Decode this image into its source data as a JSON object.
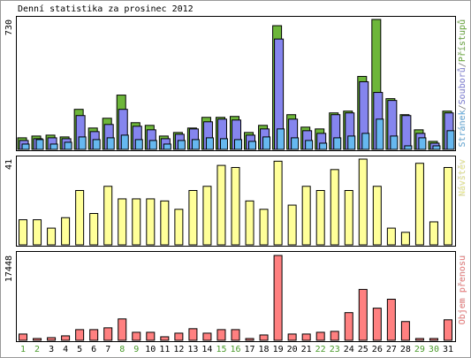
{
  "chart_data": [
    {
      "type": "bar",
      "title": "Denní statistika za prosinec 2012",
      "legend_separator": "/",
      "series": [
        {
          "name": "Stránek",
          "color": "#66b8f0",
          "values": [
            30,
            55,
            30,
            40,
            70,
            55,
            65,
            80,
            55,
            50,
            30,
            50,
            55,
            65,
            60,
            55,
            45,
            70,
            115,
            65,
            50,
            35,
            65,
            75,
            90,
            170,
            75,
            20,
            65,
            20,
            105
          ]
        },
        {
          "name": "Souborů",
          "color": "#8585ee",
          "values": [
            50,
            60,
            65,
            60,
            190,
            100,
            140,
            225,
            130,
            110,
            60,
            85,
            115,
            155,
            170,
            165,
            80,
            115,
            620,
            170,
            105,
            90,
            195,
            205,
            380,
            320,
            275,
            190,
            90,
            35,
            205
          ]
        },
        {
          "name": "Přístupů",
          "color": "#6db63a",
          "values": [
            65,
            75,
            80,
            70,
            225,
            120,
            175,
            305,
            150,
            135,
            75,
            95,
            120,
            180,
            180,
            185,
            95,
            135,
            695,
            195,
            125,
            115,
            205,
            215,
            410,
            730,
            285,
            195,
            110,
            45,
            215
          ]
        }
      ],
      "ylim": [
        0,
        730
      ],
      "yticks": [
        730
      ]
    },
    {
      "type": "bar",
      "series": [
        {
          "name": "Návštěv",
          "color": "#ffff99",
          "values": [
            12,
            12,
            8,
            13,
            26,
            15,
            28,
            22,
            22,
            22,
            21,
            17,
            26,
            28,
            38,
            37,
            21,
            17,
            40,
            19,
            28,
            26,
            36,
            26,
            41,
            28,
            8,
            6,
            39,
            11,
            37
          ]
        }
      ],
      "ylim": [
        0,
        41
      ],
      "yticks": [
        41
      ]
    },
    {
      "type": "bar",
      "series": [
        {
          "name": "Objem přenosu",
          "color": "#ff8080",
          "values": [
            1290,
            370,
            550,
            920,
            2200,
            2200,
            2570,
            4400,
            1650,
            1650,
            730,
            1470,
            2390,
            1470,
            2200,
            2200,
            370,
            1100,
            17448,
            1290,
            1290,
            1650,
            1840,
            5690,
            10470,
            6610,
            8450,
            3860,
            370,
            370,
            4220
          ]
        }
      ],
      "ylim": [
        0,
        17448
      ],
      "yticks": [
        17448
      ],
      "categories": [
        "1",
        "2",
        "3",
        "4",
        "5",
        "6",
        "7",
        "8",
        "9",
        "10",
        "11",
        "12",
        "13",
        "14",
        "15",
        "16",
        "17",
        "18",
        "19",
        "20",
        "21",
        "22",
        "23",
        "24",
        "25",
        "26",
        "27",
        "28",
        "29",
        "30",
        "31"
      ],
      "category_colors": [
        "#4a9a2b",
        "#4a9a2b",
        "#000000",
        "#000000",
        "#000000",
        "#000000",
        "#000000",
        "#4a9a2b",
        "#4a9a2b",
        "#000000",
        "#000000",
        "#000000",
        "#000000",
        "#000000",
        "#4a9a2b",
        "#4a9a2b",
        "#000000",
        "#000000",
        "#000000",
        "#000000",
        "#000000",
        "#4a9a2b",
        "#4a9a2b",
        "#000000",
        "#000000",
        "#000000",
        "#000000",
        "#000000",
        "#4a9a2b",
        "#4a9a2b",
        "#000000"
      ]
    }
  ]
}
